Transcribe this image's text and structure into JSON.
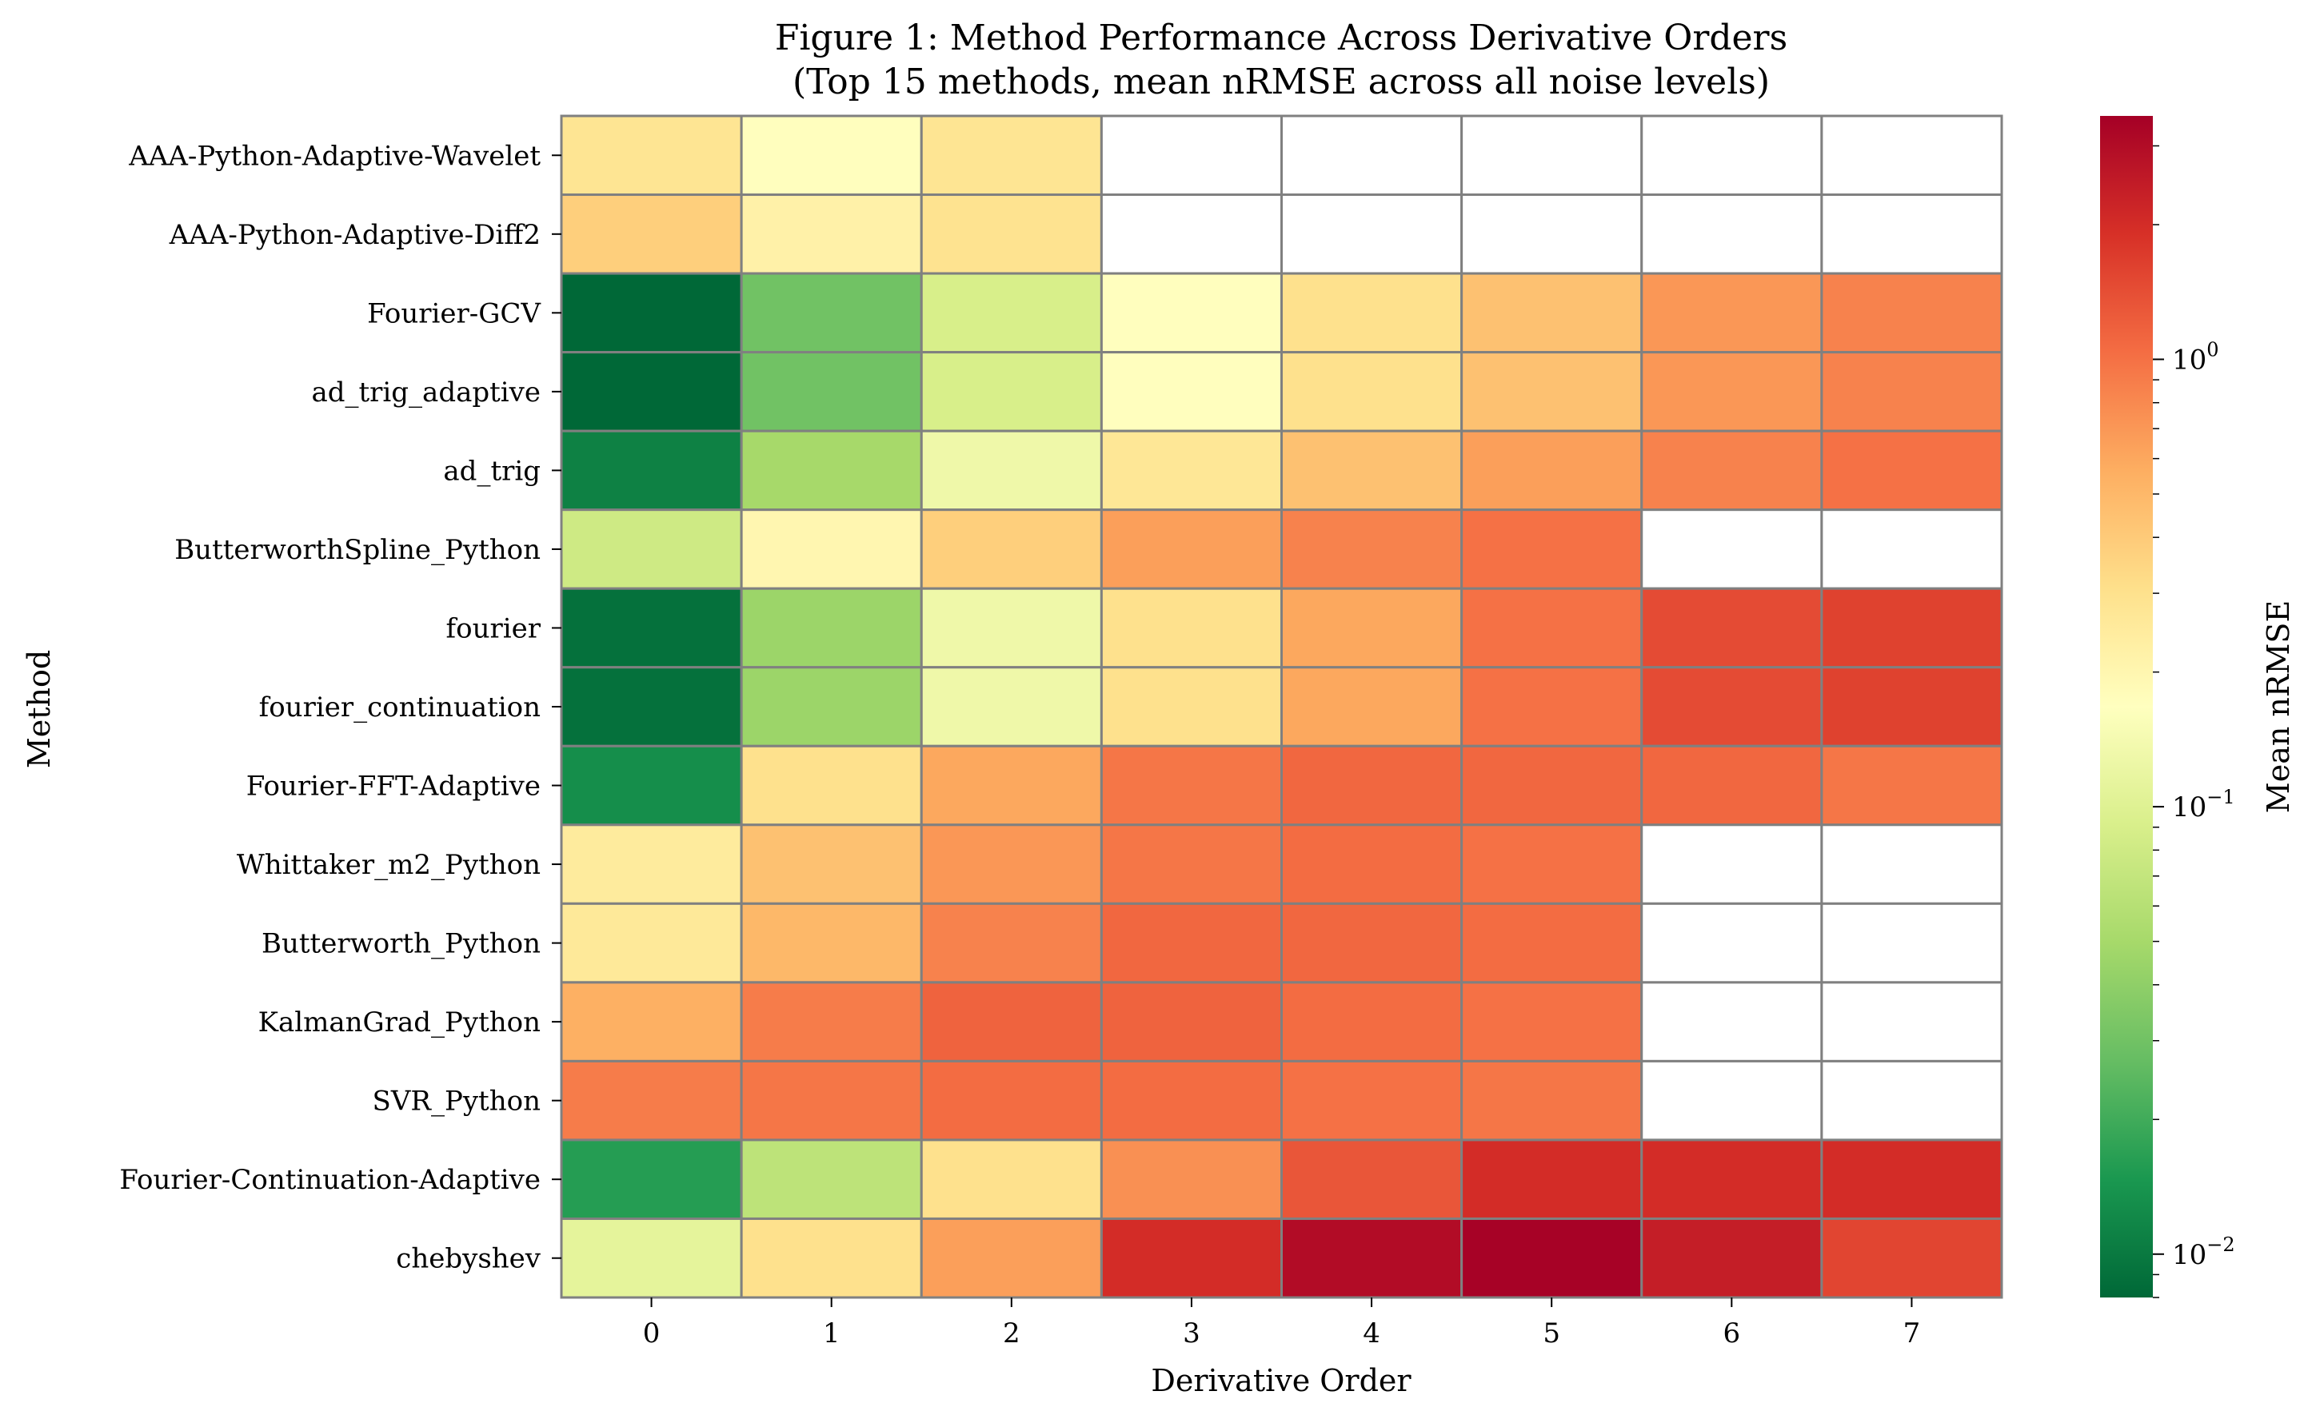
{
  "chart_data": {
    "type": "heatmap",
    "title": "Figure 1: Method Performance Across Derivative Orders",
    "subtitle": "(Top 15 methods, mean nRMSE across all noise levels)",
    "xlabel": "Derivative Order",
    "ylabel": "Method",
    "colorbar_label": "Mean nRMSE",
    "colorbar_scale": "log",
    "colorbar_range": [
      0.008,
      3.5
    ],
    "colorbar_ticks": [
      {
        "value": 0.01,
        "base": "10",
        "exp": "−2"
      },
      {
        "value": 0.1,
        "base": "10",
        "exp": "−1"
      },
      {
        "value": 1,
        "base": "10",
        "exp": "0"
      }
    ],
    "colormap": "RdYlGn_r",
    "x": [
      "0",
      "1",
      "2",
      "3",
      "4",
      "5",
      "6",
      "7"
    ],
    "y": [
      "AAA-Python-Adaptive-Wavelet",
      "AAA-Python-Adaptive-Diff2",
      "Fourier-GCV",
      "ad_trig_adaptive",
      "ad_trig",
      "ButterworthSpline_Python",
      "fourier",
      "fourier_continuation",
      "Fourier-FFT-Adaptive",
      "Whittaker_m2_Python",
      "Butterworth_Python",
      "KalmanGrad_Python",
      "SVR_Python",
      "Fourier-Continuation-Adaptive",
      "chebyshev"
    ],
    "values": [
      [
        0.28,
        0.17,
        0.28,
        null,
        null,
        null,
        null,
        null
      ],
      [
        0.38,
        0.22,
        0.29,
        null,
        null,
        null,
        null,
        null
      ],
      [
        0.008,
        0.03,
        0.09,
        0.17,
        0.3,
        0.45,
        0.7,
        0.85
      ],
      [
        0.008,
        0.03,
        0.09,
        0.17,
        0.3,
        0.45,
        0.7,
        0.85
      ],
      [
        0.011,
        0.05,
        0.13,
        0.27,
        0.45,
        0.65,
        0.85,
        1.0
      ],
      [
        0.08,
        0.2,
        0.38,
        0.65,
        0.85,
        1.0,
        null,
        null
      ],
      [
        0.009,
        0.045,
        0.13,
        0.3,
        0.6,
        1.0,
        1.45,
        1.6
      ],
      [
        0.009,
        0.045,
        0.13,
        0.3,
        0.6,
        1.0,
        1.45,
        1.6
      ],
      [
        0.013,
        0.3,
        0.6,
        0.95,
        1.1,
        1.1,
        1.1,
        0.95
      ],
      [
        0.25,
        0.45,
        0.7,
        0.95,
        1.05,
        1.0,
        null,
        null
      ],
      [
        0.26,
        0.5,
        0.85,
        1.1,
        1.1,
        1.05,
        null,
        null
      ],
      [
        0.55,
        0.9,
        1.15,
        1.15,
        1.05,
        1.0,
        null,
        null
      ],
      [
        0.9,
        0.95,
        1.05,
        1.05,
        1.0,
        0.95,
        null,
        null
      ],
      [
        0.016,
        0.065,
        0.3,
        0.75,
        1.3,
        2.0,
        2.0,
        2.0
      ],
      [
        0.11,
        0.3,
        0.65,
        2.0,
        3.0,
        3.4,
        2.4,
        1.55
      ]
    ]
  }
}
